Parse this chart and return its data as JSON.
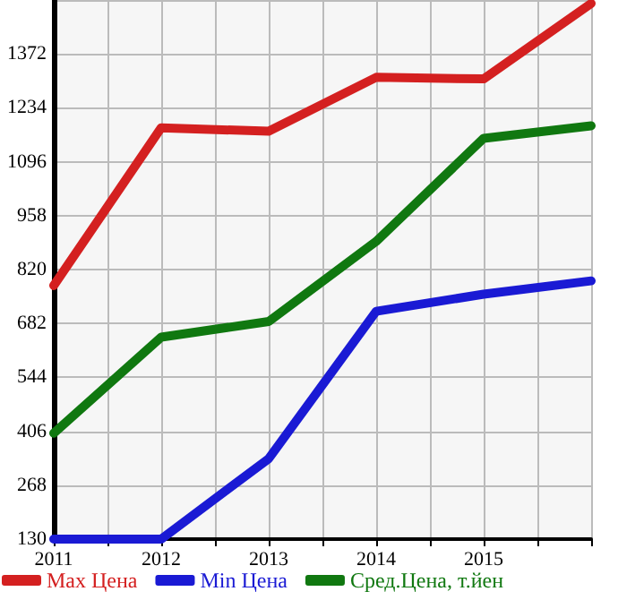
{
  "chart_data": {
    "type": "line",
    "x": [
      2011,
      2012,
      2013,
      2014,
      2015,
      2016
    ],
    "xlim": [
      2011,
      2016
    ],
    "xticks": [
      2011,
      {
        "value": 2011.5,
        "label": null
      },
      2012,
      {
        "value": 2012.5,
        "label": null
      },
      2013,
      {
        "value": 2013.5,
        "label": null
      },
      2014,
      {
        "value": 2014.5,
        "label": null
      },
      2015,
      {
        "value": 2015.5,
        "label": null
      },
      {
        "value": 2016,
        "label": null
      }
    ],
    "ylim": [
      130,
      1510
    ],
    "yticks": [
      130,
      268,
      406,
      544,
      682,
      820,
      958,
      1096,
      1234,
      1372,
      {
        "value": 1510,
        "label": null
      }
    ],
    "series": [
      {
        "name": "Max Цена",
        "color": "#d42020",
        "values": [
          779,
          1183,
          1174,
          1312,
          1308,
          1501
        ]
      },
      {
        "name": "Min Цена",
        "color": "#1a1ad4",
        "values": [
          130,
          130,
          336,
          713,
          757,
          791
        ]
      },
      {
        "name": "Сред.Цена, т.йен",
        "color": "#107810",
        "values": [
          401,
          647,
          687,
          892,
          1156,
          1188
        ]
      }
    ],
    "grid": true,
    "legend": "bottom",
    "marker": "none",
    "line_style": "solid"
  }
}
